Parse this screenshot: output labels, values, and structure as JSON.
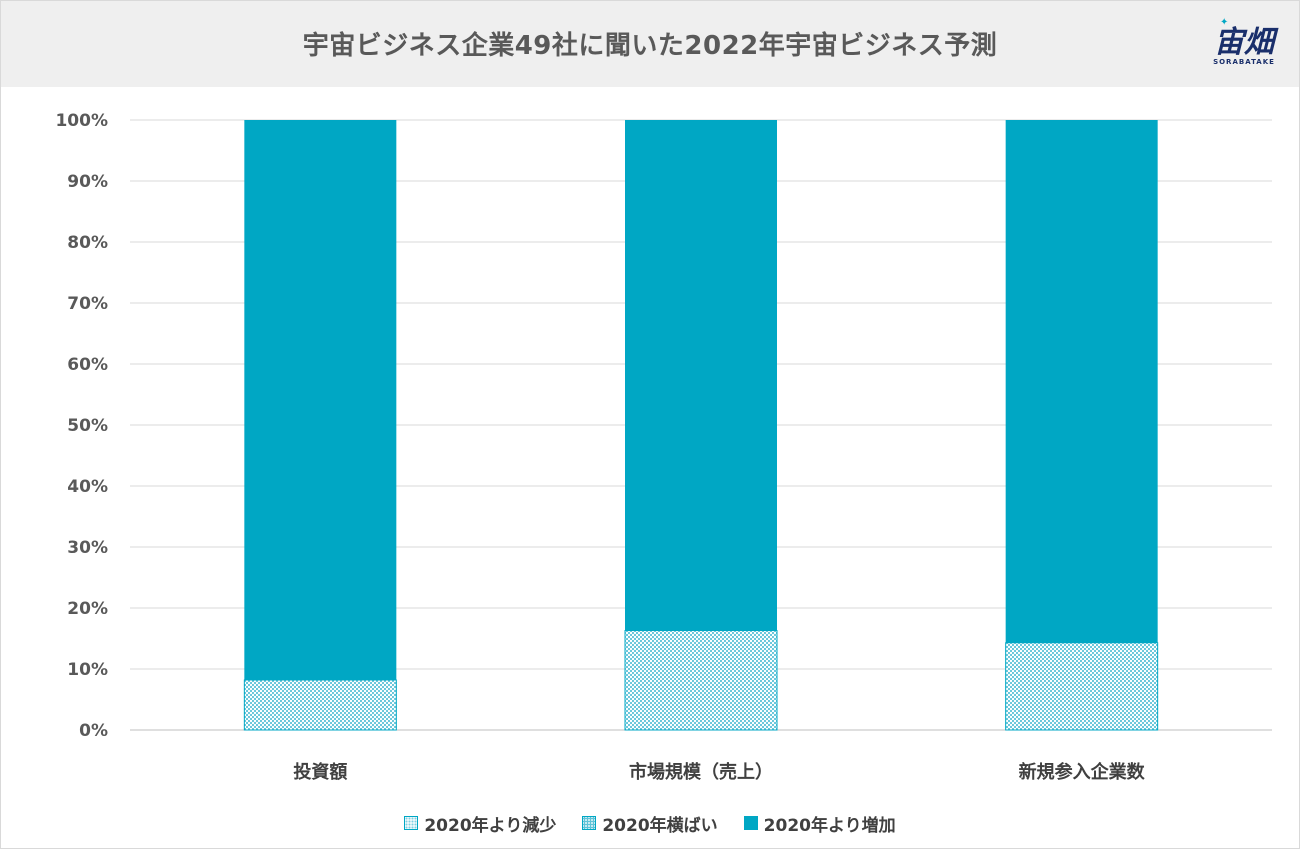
{
  "title": "宇宙ビジネス企業49社に聞いた2022年宇宙ビジネス予測",
  "logo": {
    "mark": "宙畑",
    "sub": "SORABATAKE"
  },
  "colors": {
    "increase": "#00a7c4",
    "pattern": "#5ec3d8",
    "grid": "#d9d9d9",
    "text": "#595959"
  },
  "chart_data": {
    "type": "bar",
    "stacked": true,
    "percent": true,
    "categories": [
      "投資額",
      "市場規模（売上）",
      "新規参入企業数"
    ],
    "series": [
      {
        "name": "2020年より減少",
        "values": [
          0,
          0,
          0
        ]
      },
      {
        "name": "2020年横ばい",
        "values": [
          8.2,
          16.3,
          14.3
        ]
      },
      {
        "name": "2020年より増加",
        "values": [
          91.8,
          83.7,
          85.7
        ]
      }
    ],
    "y_ticks": [
      "0%",
      "10%",
      "20%",
      "30%",
      "40%",
      "50%",
      "60%",
      "70%",
      "80%",
      "90%",
      "100%"
    ],
    "ylim": [
      0,
      100
    ],
    "grid": true,
    "legend": "bottom"
  }
}
